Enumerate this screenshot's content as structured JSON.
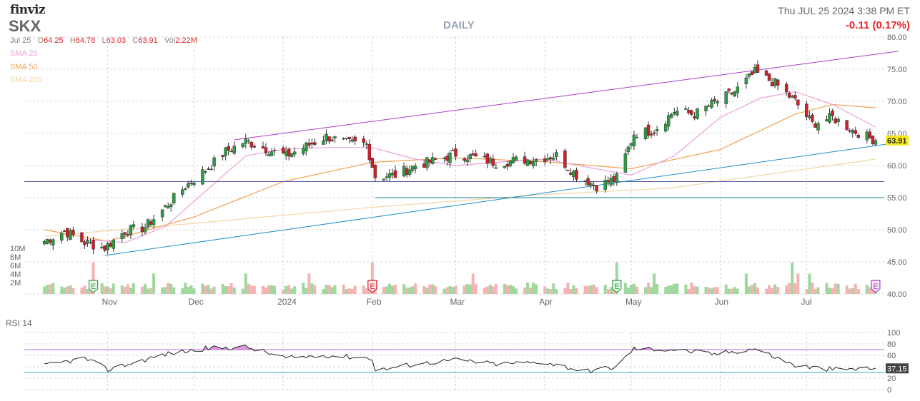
{
  "header": {
    "logo": "finviz",
    "ticker": "SKX",
    "period": "DAILY",
    "datetime": "Thu JUL 25 2024 3:38 PM ET",
    "change": "-0.11 (0.17%)"
  },
  "ohlc": {
    "date": "Jul 25",
    "o_label": "O",
    "o": "64.25",
    "h_label": "H",
    "h": "64.78",
    "l_label": "L",
    "l": "63.03",
    "c_label": "C",
    "c": "63.91",
    "vol_label": "Vol",
    "vol": "2.22M"
  },
  "legend": [
    {
      "label": "SMA 20",
      "color": "#e9a1d8"
    },
    {
      "label": "SMA 50",
      "color": "#f0a254"
    },
    {
      "label": "SMA 200",
      "color": "#f1d7a4"
    }
  ],
  "colors": {
    "up": "#2e9e44",
    "down": "#d21e2b",
    "trendline_upper": "#a93ecb",
    "trendline_lower": "#1e90c8",
    "support_line": "#5355a8",
    "support_line_2": "#167c92",
    "vol_up": "#9fd79d",
    "vol_down": "#f4b3b3",
    "last_price_bg": "#f6e81c",
    "rsi_line": "#222222",
    "rsi_fill": "#cc77cc"
  },
  "chart_data": {
    "type": "candlestick",
    "title": "SKX",
    "price_axis": {
      "min": 40,
      "max": 80,
      "ticks": [
        "80.00",
        "75.00",
        "70.00",
        "65.00",
        "60.00",
        "55.00",
        "50.00",
        "45.00",
        "40.00"
      ]
    },
    "volume_axis": {
      "ticks": [
        "10M",
        "8M",
        "6M",
        "4M",
        "2M"
      ]
    },
    "x_tick_labels": [
      "Nov",
      "Dec",
      "2024",
      "Feb",
      "Mar",
      "Apr",
      "May",
      "Jun",
      "Jul"
    ],
    "last_price": "63.91",
    "earnings_markers": [
      {
        "label": "E",
        "type": "positive"
      },
      {
        "label": "E",
        "type": "negative"
      },
      {
        "label": "E",
        "type": "positive"
      },
      {
        "label": "E",
        "type": "upcoming"
      }
    ],
    "horizontal_lines": [
      57.5,
      55.0
    ],
    "close_path": [
      [
        "2023-10-10",
        48.2
      ],
      [
        "2023-10-17",
        49.8
      ],
      [
        "2023-10-24",
        48.0
      ],
      [
        "2023-10-31",
        47.2
      ],
      [
        "2023-11-07",
        49.8
      ],
      [
        "2023-11-14",
        50.4
      ],
      [
        "2023-11-21",
        53.5
      ],
      [
        "2023-11-28",
        56.8
      ],
      [
        "2023-12-05",
        59.3
      ],
      [
        "2023-12-12",
        62.2
      ],
      [
        "2023-12-19",
        63.8
      ],
      [
        "2023-12-26",
        62.6
      ],
      [
        "2024-01-02",
        61.5
      ],
      [
        "2024-01-09",
        63.0
      ],
      [
        "2024-01-16",
        64.5
      ],
      [
        "2024-01-23",
        63.5
      ],
      [
        "2024-01-30",
        63.3
      ],
      [
        "2024-02-02",
        58.3
      ],
      [
        "2024-02-09",
        58.5
      ],
      [
        "2024-02-16",
        60.0
      ],
      [
        "2024-02-23",
        60.8
      ],
      [
        "2024-03-01",
        61.8
      ],
      [
        "2024-03-08",
        61.2
      ],
      [
        "2024-03-15",
        60.4
      ],
      [
        "2024-03-22",
        60.8
      ],
      [
        "2024-03-29",
        61.0
      ],
      [
        "2024-04-05",
        61.6
      ],
      [
        "2024-04-12",
        58.5
      ],
      [
        "2024-04-19",
        56.8
      ],
      [
        "2024-04-26",
        58.0
      ],
      [
        "2024-05-02",
        65.0
      ],
      [
        "2024-05-09",
        65.5
      ],
      [
        "2024-05-16",
        68.5
      ],
      [
        "2024-05-23",
        68.0
      ],
      [
        "2024-05-30",
        69.8
      ],
      [
        "2024-06-06",
        71.5
      ],
      [
        "2024-06-13",
        74.5
      ],
      [
        "2024-06-20",
        72.8
      ],
      [
        "2024-06-27",
        70.0
      ],
      [
        "2024-07-03",
        66.5
      ],
      [
        "2024-07-10",
        67.5
      ],
      [
        "2024-07-17",
        65.5
      ],
      [
        "2024-07-25",
        63.91
      ]
    ],
    "sma20_path": [
      [
        "2023-10-24",
        48.5
      ],
      [
        "2023-11-07",
        48.0
      ],
      [
        "2023-11-21",
        50.5
      ],
      [
        "2023-12-05",
        56.0
      ],
      [
        "2023-12-19",
        61.5
      ],
      [
        "2024-01-02",
        62.6
      ],
      [
        "2024-01-16",
        62.8
      ],
      [
        "2024-02-01",
        62.8
      ],
      [
        "2024-02-16",
        61.0
      ],
      [
        "2024-03-01",
        60.0
      ],
      [
        "2024-03-15",
        60.5
      ],
      [
        "2024-04-01",
        61.0
      ],
      [
        "2024-04-15",
        59.8
      ],
      [
        "2024-05-01",
        58.5
      ],
      [
        "2024-05-16",
        61.5
      ],
      [
        "2024-06-01",
        67.5
      ],
      [
        "2024-06-15",
        70.5
      ],
      [
        "2024-06-27",
        71.5
      ],
      [
        "2024-07-10",
        69.5
      ],
      [
        "2024-07-25",
        66.0
      ]
    ],
    "sma50_path": [
      [
        "2023-10-10",
        50.0
      ],
      [
        "2023-11-01",
        48.2
      ],
      [
        "2023-12-01",
        52.0
      ],
      [
        "2024-01-01",
        57.5
      ],
      [
        "2024-02-01",
        60.5
      ],
      [
        "2024-03-01",
        61.2
      ],
      [
        "2024-04-01",
        60.6
      ],
      [
        "2024-05-01",
        59.5
      ],
      [
        "2024-06-01",
        62.5
      ],
      [
        "2024-06-27",
        68.0
      ],
      [
        "2024-07-10",
        69.5
      ],
      [
        "2024-07-25",
        69.0
      ]
    ],
    "sma200_path": [
      [
        "2023-10-10",
        49.0
      ],
      [
        "2023-12-01",
        51.0
      ],
      [
        "2024-02-01",
        53.5
      ],
      [
        "2024-04-01",
        55.5
      ],
      [
        "2024-05-15",
        56.5
      ],
      [
        "2024-07-25",
        61.0
      ]
    ],
    "rsi": {
      "label": "RSI 14",
      "last": "37.15",
      "ticks": [
        "100",
        "80",
        "60",
        "40",
        "20",
        "0"
      ],
      "levels": [
        70,
        30
      ],
      "path": [
        [
          "2023-10-10",
          42
        ],
        [
          "2023-10-24",
          55
        ],
        [
          "2023-11-01",
          35
        ],
        [
          "2023-11-21",
          62
        ],
        [
          "2023-12-05",
          72
        ],
        [
          "2023-12-19",
          75
        ],
        [
          "2024-01-02",
          55
        ],
        [
          "2024-01-16",
          60
        ],
        [
          "2024-02-01",
          55
        ],
        [
          "2024-02-02",
          33
        ],
        [
          "2024-02-16",
          45
        ],
        [
          "2024-03-01",
          52
        ],
        [
          "2024-03-15",
          45
        ],
        [
          "2024-04-01",
          48
        ],
        [
          "2024-04-15",
          32
        ],
        [
          "2024-04-26",
          40
        ],
        [
          "2024-05-02",
          72
        ],
        [
          "2024-05-16",
          70
        ],
        [
          "2024-05-30",
          62
        ],
        [
          "2024-06-13",
          72
        ],
        [
          "2024-06-27",
          42
        ],
        [
          "2024-07-10",
          35
        ],
        [
          "2024-07-25",
          37.15
        ]
      ]
    }
  }
}
